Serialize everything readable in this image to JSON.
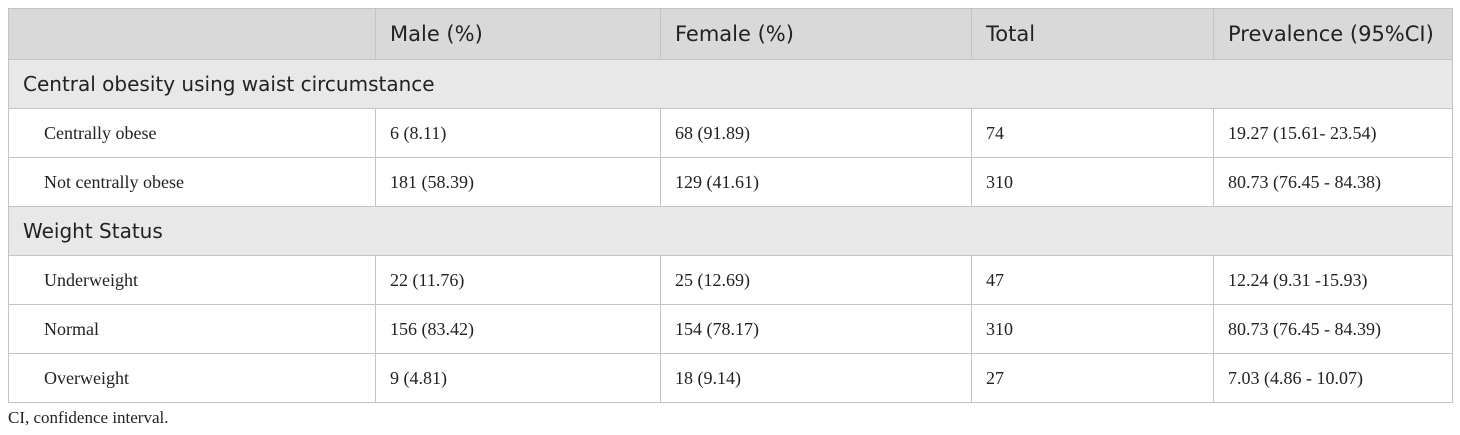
{
  "header": {
    "columns": [
      "Male (%)",
      "Female (%)",
      "Total",
      "Prevalence (95%CI)"
    ]
  },
  "sections": [
    {
      "title": "Central obesity using waist circumstance",
      "rows": [
        [
          "Centrally obese",
          "6 (8.11)",
          "68 (91.89)",
          "74",
          "19.27 (15.61- 23.54)"
        ],
        [
          "Not centrally obese",
          "181 (58.39)",
          "129 (41.61)",
          "310",
          "80.73 (76.45 - 84.38)"
        ]
      ]
    },
    {
      "title": "Weight Status",
      "rows": [
        [
          "Underweight",
          "22 (11.76)",
          "25 (12.69)",
          "47",
          "12.24 (9.31 -15.93)"
        ],
        [
          "Normal",
          "156 (83.42)",
          "154 (78.17)",
          "310",
          "80.73 (76.45 - 84.39)"
        ],
        [
          "Overweight",
          "9 (4.81)",
          "18 (9.14)",
          "27",
          "7.03 (4.86 - 10.07)"
        ]
      ]
    }
  ],
  "footnote": "CI, confidence interval."
}
